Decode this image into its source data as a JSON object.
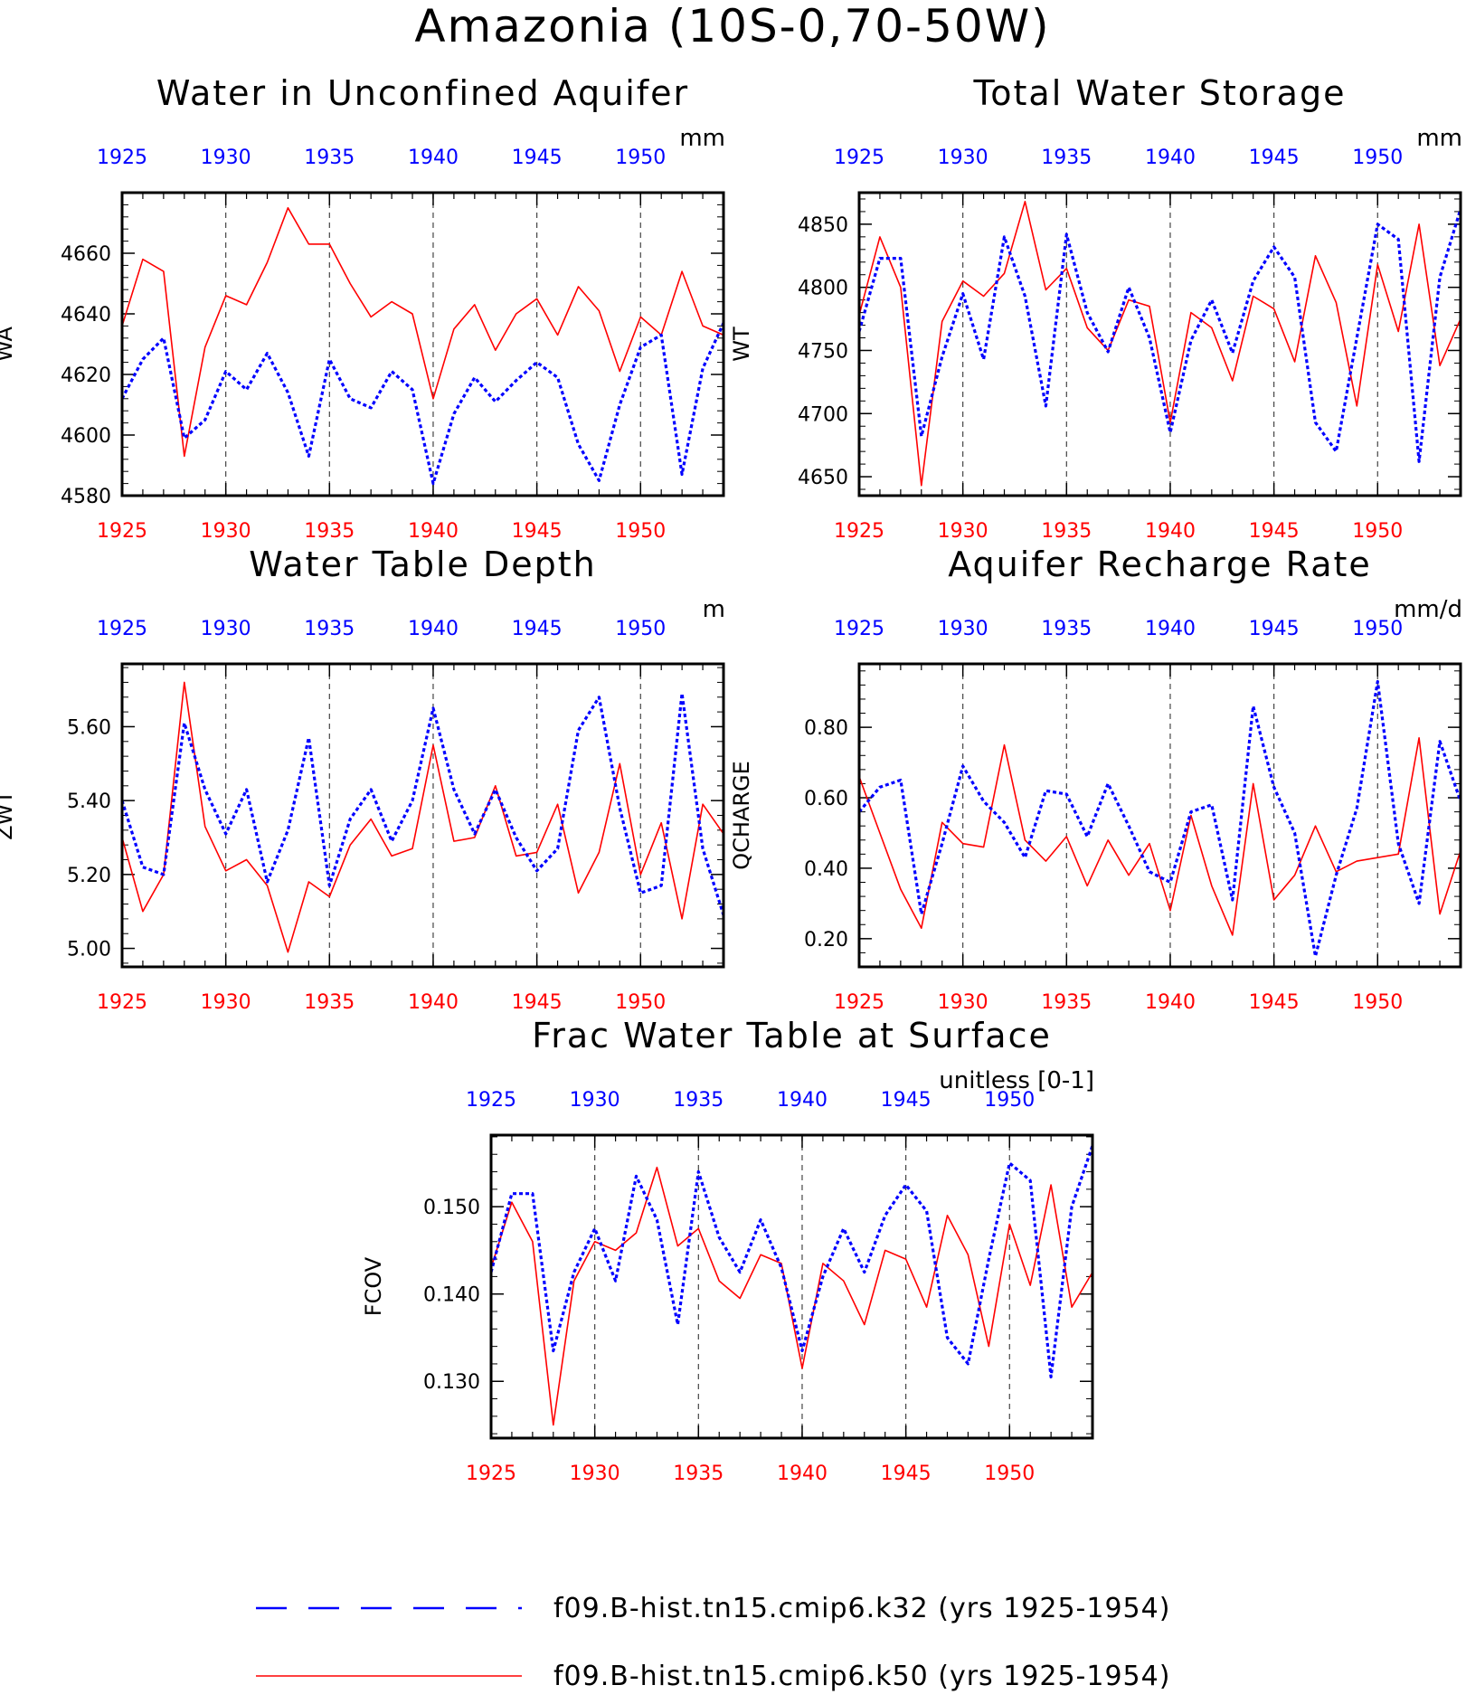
{
  "figure": {
    "title": "Amazonia (10S-0,70-50W)"
  },
  "colors": {
    "k32": "#0000ff",
    "k50": "#ff0000",
    "axis": "#000000"
  },
  "legend": {
    "placement": "bottom-center",
    "items": [
      {
        "label": "f09.B-hist.tn15.cmip6.k32 (yrs 1925-1954)",
        "color": "#0000ff",
        "style": "dashed"
      },
      {
        "label": "f09.B-hist.tn15.cmip6.k50 (yrs 1925-1954)",
        "color": "#ff0000",
        "style": "solid"
      }
    ]
  },
  "chart_data": [
    {
      "type": "line",
      "title": "Water in Unconfined Aquifer",
      "ylabel": "WA",
      "units": "mm",
      "xlim": [
        1925,
        1954
      ],
      "ylim": [
        4580,
        4680
      ],
      "yticks": [
        4580,
        4600,
        4620,
        4640,
        4660
      ],
      "yticklabels": [
        "4580",
        "4600",
        "4620",
        "4640",
        "4660"
      ],
      "xticks": [
        1925,
        1930,
        1935,
        1940,
        1945,
        1950
      ],
      "xticklabels": [
        "1925",
        "1930",
        "1935",
        "1940",
        "1945",
        "1950"
      ],
      "grid": "vertical dashed at labeled years",
      "x": [
        1925,
        1926,
        1927,
        1928,
        1929,
        1930,
        1931,
        1932,
        1933,
        1934,
        1935,
        1936,
        1937,
        1938,
        1939,
        1940,
        1941,
        1942,
        1943,
        1944,
        1945,
        1946,
        1947,
        1948,
        1949,
        1950,
        1951,
        1952,
        1953,
        1954
      ],
      "series": [
        {
          "name": "f09.B-hist.tn15.cmip6.k32 (yrs 1925-1954)",
          "color": "#0000ff",
          "style": "dashed",
          "values": [
            4612,
            4625,
            4632,
            4599,
            4605,
            4621,
            4615,
            4627,
            4614,
            4593,
            4625,
            4612,
            4609,
            4621,
            4615,
            4584,
            4607,
            4619,
            4611,
            4618,
            4624,
            4619,
            4597,
            4585,
            4610,
            4629,
            4633,
            4587,
            4622,
            4637
          ]
        },
        {
          "name": "f09.B-hist.tn15.cmip6.k50 (yrs 1925-1954)",
          "color": "#ff0000",
          "style": "solid",
          "values": [
            4636,
            4658,
            4654,
            4593,
            4629,
            4646,
            4643,
            4657,
            4675,
            4663,
            4663,
            4650,
            4639,
            4644,
            4640,
            4612,
            4635,
            4643,
            4628,
            4640,
            4645,
            4633,
            4649,
            4641,
            4621,
            4639,
            4633,
            4654,
            4636,
            4633
          ]
        }
      ]
    },
    {
      "type": "line",
      "title": "Total Water Storage",
      "ylabel": "WT",
      "units": "mm",
      "xlim": [
        1925,
        1954
      ],
      "ylim": [
        4635,
        4875
      ],
      "yticks": [
        4650,
        4700,
        4750,
        4800,
        4850
      ],
      "yticklabels": [
        "4650",
        "4700",
        "4750",
        "4800",
        "4850"
      ],
      "xticks": [
        1925,
        1930,
        1935,
        1940,
        1945,
        1950
      ],
      "xticklabels": [
        "1925",
        "1930",
        "1935",
        "1940",
        "1945",
        "1950"
      ],
      "grid": "vertical dashed at labeled years",
      "x": [
        1925,
        1926,
        1927,
        1928,
        1929,
        1930,
        1931,
        1932,
        1933,
        1934,
        1935,
        1936,
        1937,
        1938,
        1939,
        1940,
        1941,
        1942,
        1943,
        1944,
        1945,
        1946,
        1947,
        1948,
        1949,
        1950,
        1951,
        1952,
        1953,
        1954
      ],
      "series": [
        {
          "name": "f09.B-hist.tn15.cmip6.k32 (yrs 1925-1954)",
          "color": "#0000ff",
          "style": "dashed",
          "values": [
            4765,
            4823,
            4823,
            4682,
            4745,
            4795,
            4743,
            4840,
            4793,
            4706,
            4842,
            4780,
            4749,
            4800,
            4760,
            4685,
            4758,
            4790,
            4748,
            4805,
            4832,
            4808,
            4693,
            4670,
            4760,
            4850,
            4838,
            4662,
            4808,
            4862
          ]
        },
        {
          "name": "f09.B-hist.tn15.cmip6.k50 (yrs 1925-1954)",
          "color": "#ff0000",
          "style": "solid",
          "values": [
            4778,
            4840,
            4800,
            4643,
            4773,
            4805,
            4793,
            4811,
            4868,
            4798,
            4815,
            4768,
            4750,
            4790,
            4785,
            4693,
            4780,
            4768,
            4726,
            4793,
            4783,
            4741,
            4825,
            4788,
            4706,
            4818,
            4765,
            4850,
            4738,
            4775
          ]
        }
      ]
    },
    {
      "type": "line",
      "title": "Water Table Depth",
      "ylabel": "ZWT",
      "units": "m",
      "xlim": [
        1925,
        1954
      ],
      "ylim": [
        4.95,
        5.77
      ],
      "yticks": [
        5.0,
        5.2,
        5.4,
        5.6
      ],
      "yticklabels": [
        "5.00",
        "5.20",
        "5.40",
        "5.60"
      ],
      "xticks": [
        1925,
        1930,
        1935,
        1940,
        1945,
        1950
      ],
      "xticklabels": [
        "1925",
        "1930",
        "1935",
        "1940",
        "1945",
        "1950"
      ],
      "grid": "vertical dashed at labeled years",
      "x": [
        1925,
        1926,
        1927,
        1928,
        1929,
        1930,
        1931,
        1932,
        1933,
        1934,
        1935,
        1936,
        1937,
        1938,
        1939,
        1940,
        1941,
        1942,
        1943,
        1944,
        1945,
        1946,
        1947,
        1948,
        1949,
        1950,
        1951,
        1952,
        1953,
        1954
      ],
      "series": [
        {
          "name": "f09.B-hist.tn15.cmip6.k32 (yrs 1925-1954)",
          "color": "#0000ff",
          "style": "dashed",
          "values": [
            5.4,
            5.22,
            5.2,
            5.61,
            5.43,
            5.31,
            5.43,
            5.18,
            5.32,
            5.57,
            5.17,
            5.35,
            5.43,
            5.29,
            5.4,
            5.65,
            5.43,
            5.31,
            5.43,
            5.3,
            5.21,
            5.27,
            5.59,
            5.68,
            5.38,
            5.15,
            5.17,
            5.69,
            5.27,
            5.09
          ]
        },
        {
          "name": "f09.B-hist.tn15.cmip6.k50 (yrs 1925-1954)",
          "color": "#ff0000",
          "style": "solid",
          "values": [
            5.3,
            5.1,
            5.2,
            5.72,
            5.33,
            5.21,
            5.24,
            5.17,
            4.99,
            5.18,
            5.14,
            5.28,
            5.35,
            5.25,
            5.27,
            5.55,
            5.29,
            5.3,
            5.44,
            5.25,
            5.26,
            5.39,
            5.15,
            5.26,
            5.5,
            5.2,
            5.34,
            5.08,
            5.39,
            5.31
          ]
        }
      ]
    },
    {
      "type": "line",
      "title": "Aquifer Recharge Rate",
      "ylabel": "QCHARGE",
      "units": "mm/d",
      "xlim": [
        1925,
        1954
      ],
      "ylim": [
        0.12,
        0.98
      ],
      "yticks": [
        0.2,
        0.4,
        0.6,
        0.8
      ],
      "yticklabels": [
        "0.20",
        "0.40",
        "0.60",
        "0.80"
      ],
      "xticks": [
        1925,
        1930,
        1935,
        1940,
        1945,
        1950
      ],
      "xticklabels": [
        "1925",
        "1930",
        "1935",
        "1940",
        "1945",
        "1950"
      ],
      "grid": "vertical dashed at labeled years",
      "x": [
        1925,
        1926,
        1927,
        1928,
        1929,
        1930,
        1931,
        1932,
        1933,
        1934,
        1935,
        1936,
        1937,
        1938,
        1939,
        1940,
        1941,
        1942,
        1943,
        1944,
        1945,
        1946,
        1947,
        1948,
        1949,
        1950,
        1951,
        1952,
        1953,
        1954
      ],
      "series": [
        {
          "name": "f09.B-hist.tn15.cmip6.k32 (yrs 1925-1954)",
          "color": "#0000ff",
          "style": "dashed",
          "values": [
            0.56,
            0.63,
            0.65,
            0.27,
            0.47,
            0.69,
            0.59,
            0.53,
            0.43,
            0.62,
            0.61,
            0.49,
            0.64,
            0.52,
            0.39,
            0.36,
            0.56,
            0.58,
            0.31,
            0.86,
            0.63,
            0.5,
            0.15,
            0.38,
            0.57,
            0.93,
            0.47,
            0.3,
            0.76,
            0.59
          ]
        },
        {
          "name": "f09.B-hist.tn15.cmip6.k50 (yrs 1925-1954)",
          "color": "#ff0000",
          "style": "solid",
          "values": [
            0.66,
            0.5,
            0.34,
            0.23,
            0.53,
            0.47,
            0.46,
            0.75,
            0.48,
            0.42,
            0.49,
            0.35,
            0.48,
            0.38,
            0.47,
            0.28,
            0.55,
            0.35,
            0.21,
            0.64,
            0.31,
            0.38,
            0.52,
            0.39,
            0.42,
            0.43,
            0.44,
            0.77,
            0.27,
            0.45
          ]
        }
      ]
    },
    {
      "type": "line",
      "title": "Frac Water Table at Surface",
      "ylabel": "FCOV",
      "units": "unitless [0-1]",
      "xlim": [
        1925,
        1954
      ],
      "ylim": [
        0.1235,
        0.1582
      ],
      "yticks": [
        0.13,
        0.14,
        0.15
      ],
      "yticklabels": [
        "0.130",
        "0.140",
        "0.150"
      ],
      "xticks": [
        1925,
        1930,
        1935,
        1940,
        1945,
        1950
      ],
      "xticklabels": [
        "1925",
        "1930",
        "1935",
        "1940",
        "1945",
        "1950"
      ],
      "grid": "vertical dashed at labeled years",
      "x": [
        1925,
        1926,
        1927,
        1928,
        1929,
        1930,
        1931,
        1932,
        1933,
        1934,
        1935,
        1936,
        1937,
        1938,
        1939,
        1940,
        1941,
        1942,
        1943,
        1944,
        1945,
        1946,
        1947,
        1948,
        1949,
        1950,
        1951,
        1952,
        1953,
        1954
      ],
      "series": [
        {
          "name": "f09.B-hist.tn15.cmip6.k32 (yrs 1925-1954)",
          "color": "#0000ff",
          "style": "dashed",
          "values": [
            0.1425,
            0.1515,
            0.1515,
            0.1335,
            0.1425,
            0.1475,
            0.1415,
            0.1535,
            0.1485,
            0.1365,
            0.154,
            0.1465,
            0.1425,
            0.1485,
            0.143,
            0.1335,
            0.142,
            0.1475,
            0.1425,
            0.149,
            0.1525,
            0.1495,
            0.135,
            0.132,
            0.144,
            0.155,
            0.153,
            0.1305,
            0.15,
            0.157
          ]
        },
        {
          "name": "f09.B-hist.tn15.cmip6.k50 (yrs 1925-1954)",
          "color": "#ff0000",
          "style": "solid",
          "values": [
            0.143,
            0.1505,
            0.146,
            0.125,
            0.1415,
            0.146,
            0.145,
            0.147,
            0.1545,
            0.1455,
            0.1475,
            0.1415,
            0.1395,
            0.1445,
            0.1435,
            0.1315,
            0.1435,
            0.1415,
            0.1365,
            0.145,
            0.144,
            0.1385,
            0.149,
            0.1445,
            0.134,
            0.148,
            0.141,
            0.1525,
            0.1385,
            0.1425
          ]
        }
      ]
    }
  ]
}
